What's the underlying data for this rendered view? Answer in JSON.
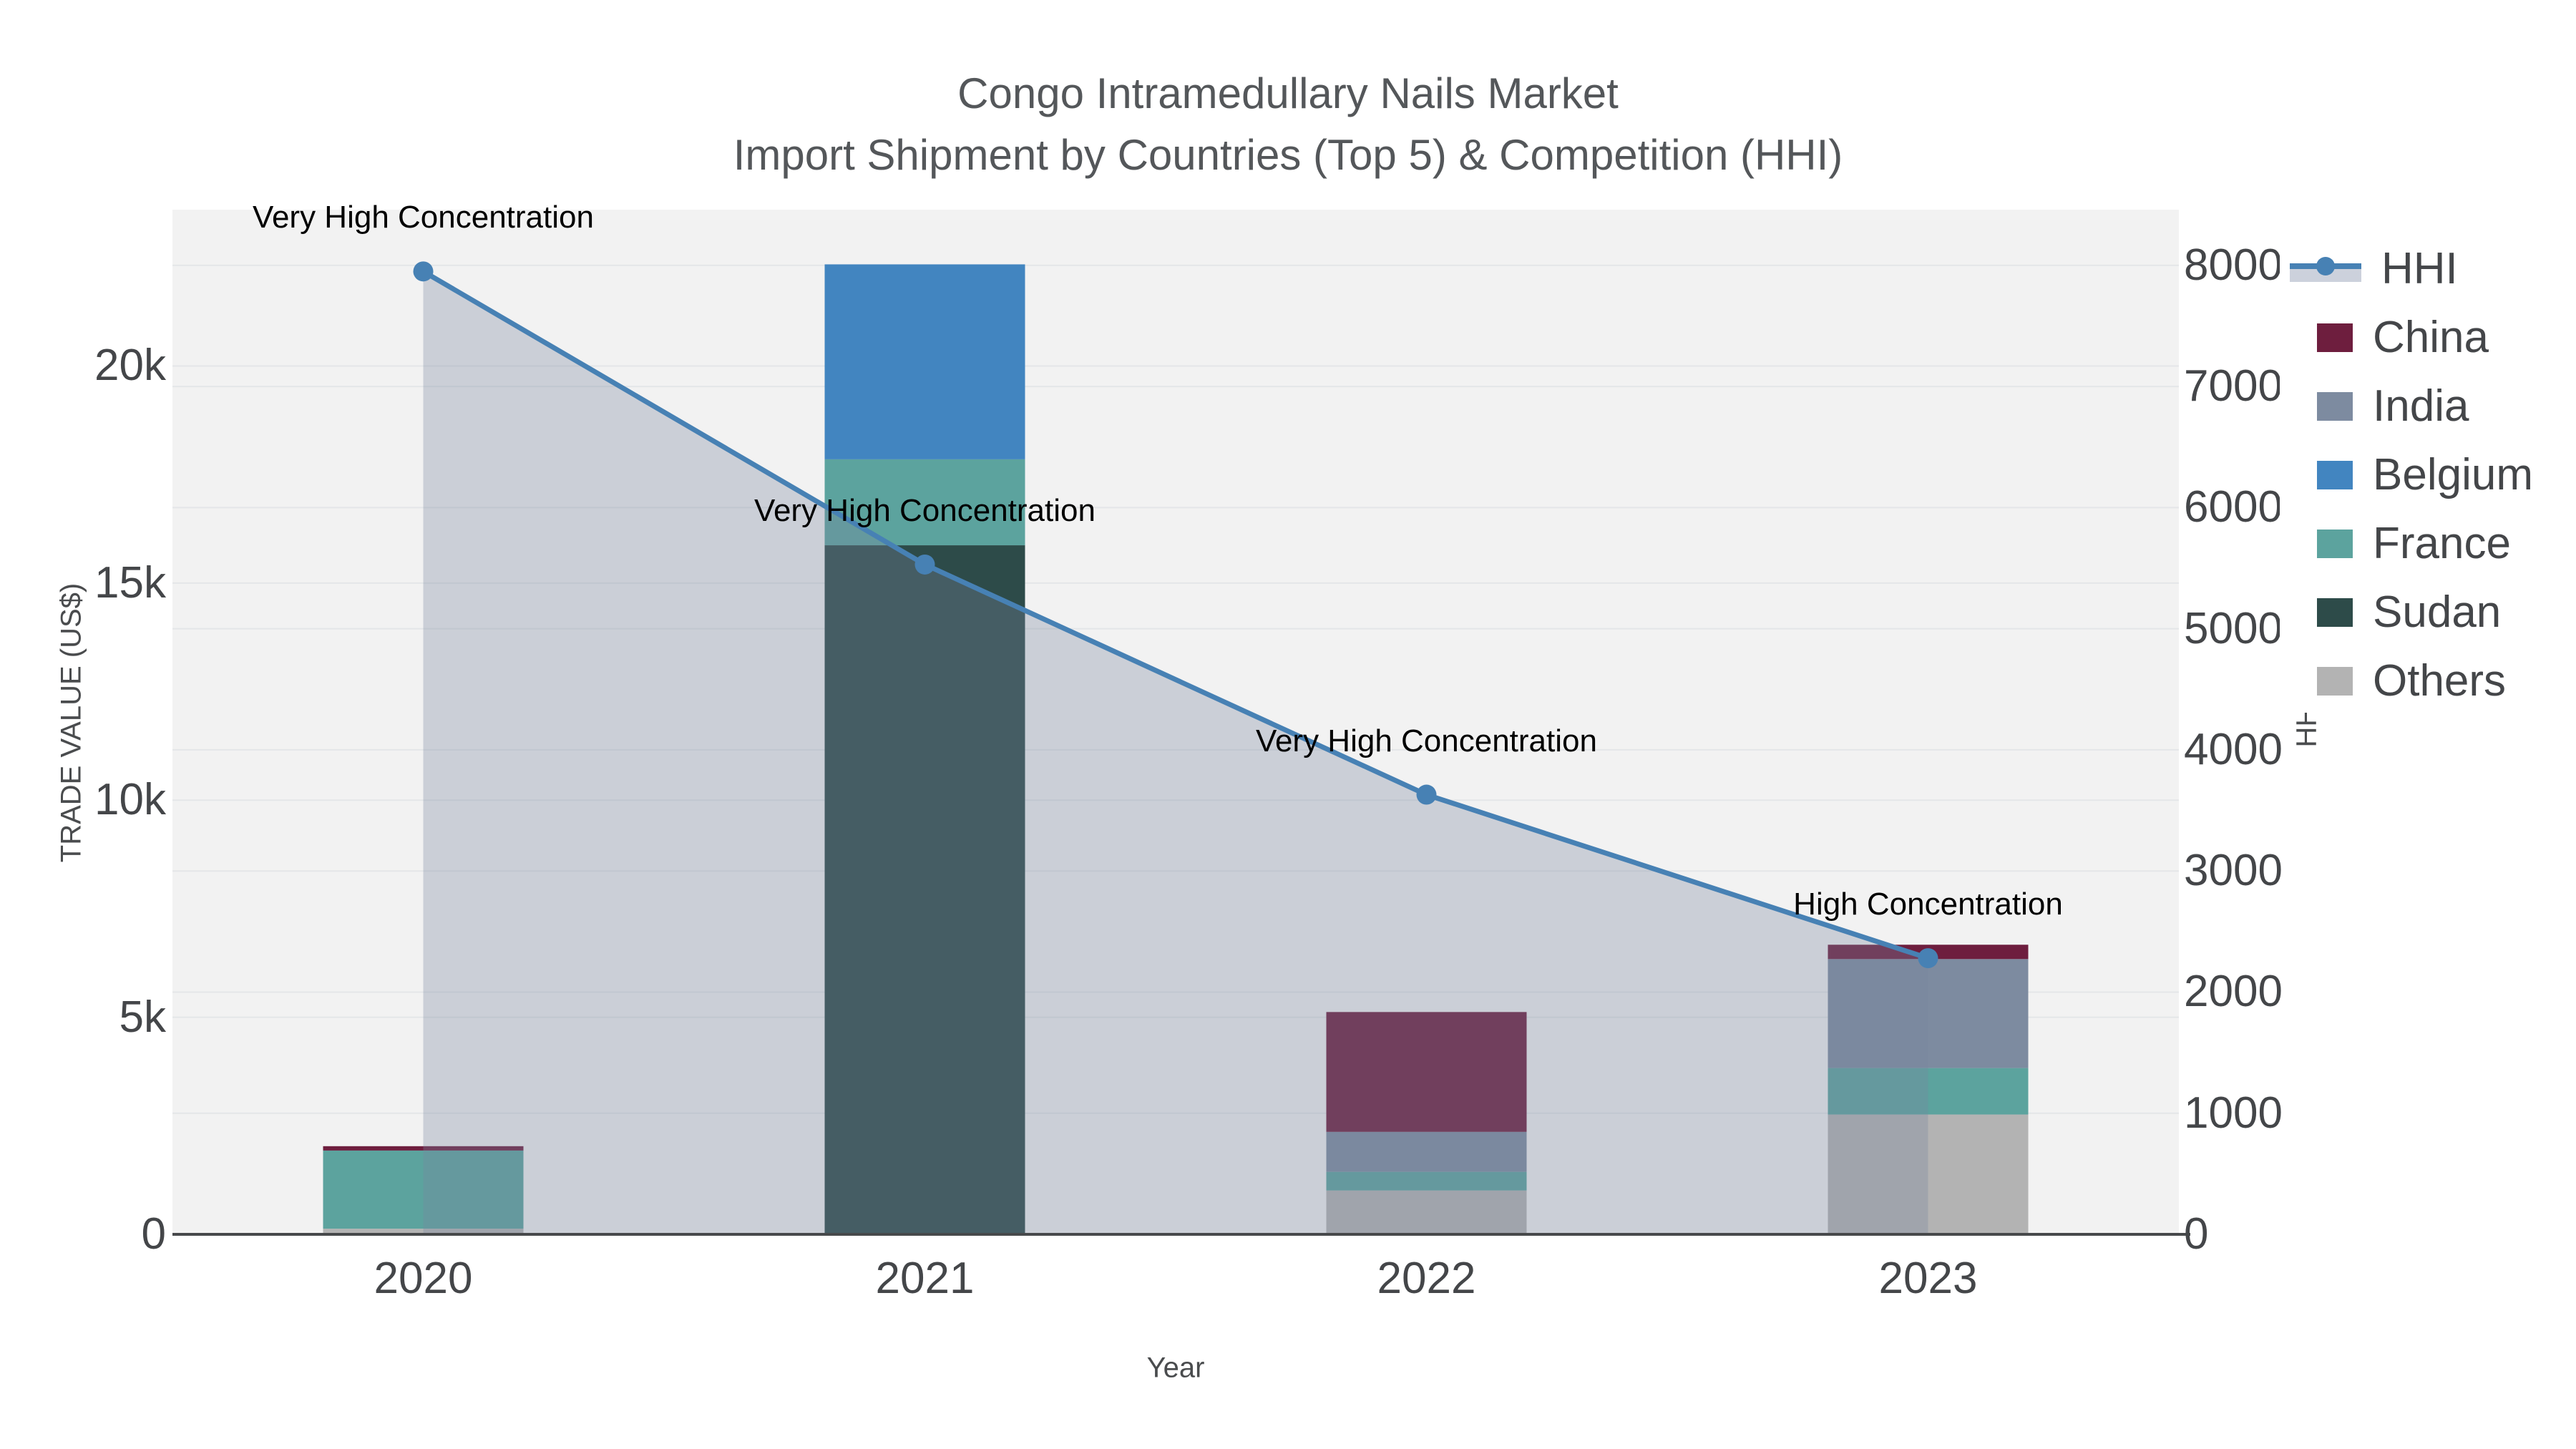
{
  "title": {
    "line1": "Congo Intramedullary Nails Market",
    "line2": "Import Shipment by Countries (Top 5) & Competition (HHI)"
  },
  "axes": {
    "x": {
      "title": "Year",
      "tick_labels": [
        "2020",
        "2021",
        "2022",
        "2023"
      ]
    },
    "y1": {
      "title": "TRADE VALUE (US$)",
      "tick_labels": [
        "0",
        "5k",
        "10k",
        "15k",
        "20k"
      ],
      "tick_values": [
        0,
        5000,
        10000,
        15000,
        20000
      ]
    },
    "y2": {
      "title": "HHI",
      "tick_labels": [
        "0",
        "1000",
        "2000",
        "3000",
        "4000",
        "5000",
        "6000",
        "7000",
        "8000"
      ],
      "tick_values": [
        0,
        1000,
        2000,
        3000,
        4000,
        5000,
        6000,
        7000,
        8000
      ]
    }
  },
  "legend": {
    "items": [
      {
        "label": "HHI",
        "symbol": "line",
        "color": "#4781b4",
        "band_color": "#ccd1dc"
      },
      {
        "label": "China",
        "symbol": "square",
        "color": "#6e1e3e"
      },
      {
        "label": "India",
        "symbol": "square",
        "color": "#7d8ba0"
      },
      {
        "label": "Belgium",
        "symbol": "square",
        "color": "#4285c0"
      },
      {
        "label": "France",
        "symbol": "square",
        "color": "#5ca39e"
      },
      {
        "label": "Sudan",
        "symbol": "square",
        "color": "#2d4b49"
      },
      {
        "label": "Others",
        "symbol": "square",
        "color": "#b3b3b3"
      }
    ]
  },
  "annotations": [
    {
      "text": "Very High Concentration",
      "point_index": 0
    },
    {
      "text": "Very High Concentration",
      "point_index": 1
    },
    {
      "text": "Very High Concentration",
      "point_index": 2
    },
    {
      "text": "High Concentration",
      "point_index": 3
    }
  ],
  "colors": {
    "plot_background": "#f2f2f2",
    "gridline": "#e4e6e8",
    "axis_line": "#47494b",
    "hhi_line": "#4781b4",
    "hhi_area_fill": "rgba(120,133,158,0.32)",
    "tick_text": "#444649",
    "title_text": "#54575a",
    "annotation_text": "#000000"
  },
  "chart_data": {
    "type": "bar+line",
    "title": "Congo Intramedullary Nails Market — Import Shipment by Countries (Top 5) & Competition (HHI)",
    "categories": [
      "2020",
      "2021",
      "2022",
      "2023"
    ],
    "xlabel": "Year",
    "ylabel": "TRADE VALUE (US$)",
    "y2label": "HHI",
    "y1_range": [
      0,
      23600
    ],
    "y2_range": [
      0,
      8460
    ],
    "grid": true,
    "legend_position": "right",
    "bar_stack_order_bottom_to_top": [
      "Others",
      "Sudan",
      "France",
      "Belgium",
      "India",
      "China"
    ],
    "series": [
      {
        "name": "Others",
        "type": "bar",
        "color": "#b3b3b3",
        "values": [
          130,
          0,
          1010,
          2760
        ]
      },
      {
        "name": "Sudan",
        "type": "bar",
        "color": "#2d4b49",
        "values": [
          0,
          15870,
          0,
          0
        ]
      },
      {
        "name": "France",
        "type": "bar",
        "color": "#5ca39e",
        "values": [
          1800,
          1980,
          430,
          1070
        ]
      },
      {
        "name": "Belgium",
        "type": "bar",
        "color": "#4285c0",
        "values": [
          0,
          4490,
          0,
          0
        ]
      },
      {
        "name": "India",
        "type": "bar",
        "color": "#7d8ba0",
        "values": [
          0,
          0,
          920,
          2510
        ]
      },
      {
        "name": "China",
        "type": "bar",
        "color": "#6e1e3e",
        "values": [
          100,
          0,
          2760,
          330
        ]
      }
    ],
    "bar_totals": [
      2030,
      22340,
      5120,
      6670
    ],
    "line_series": {
      "name": "HHI",
      "type": "line",
      "axis": "y2",
      "color": "#4781b4",
      "area_fill": "rgba(120,133,158,0.32)",
      "values": [
        7950,
        5530,
        3630,
        2280
      ]
    }
  }
}
